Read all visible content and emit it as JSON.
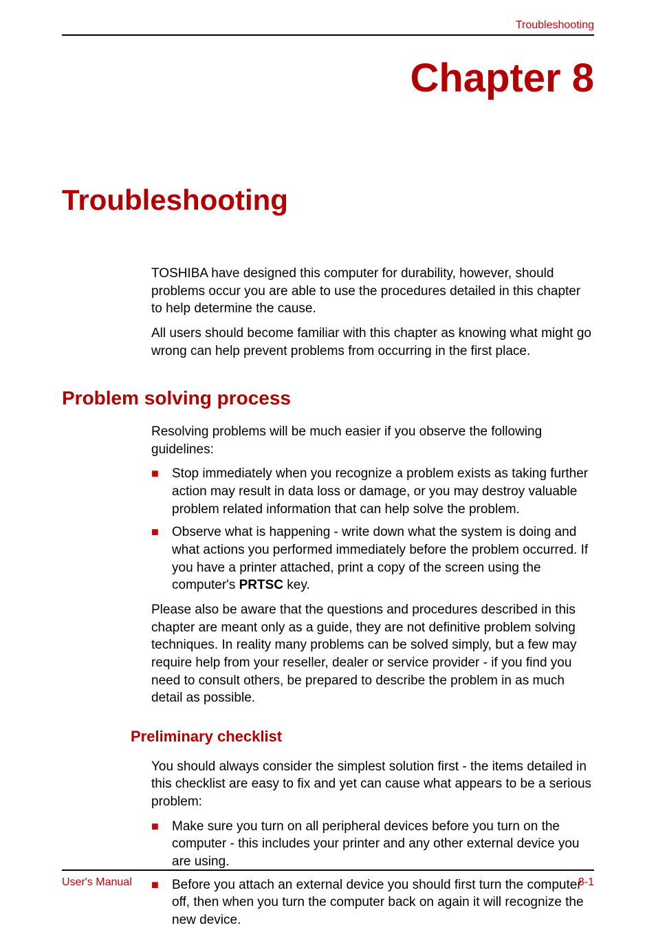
{
  "colors": {
    "accent": "#b30000",
    "accent_light": "#cc0000",
    "text": "#000000",
    "rule": "#000000",
    "background": "#ffffff",
    "bullet": "#cc0000"
  },
  "typography": {
    "body_font": "Arial",
    "body_size_pt": 14,
    "chapter_title_size_pt": 44,
    "page_title_size_pt": 32,
    "section_heading_size_pt": 21,
    "subsection_heading_size_pt": 17
  },
  "header": {
    "label": "Troubleshooting"
  },
  "chapter": {
    "title": "Chapter 8"
  },
  "page_title": "Troubleshooting",
  "intro": {
    "p1": "TOSHIBA have designed this computer for durability, however, should problems occur you are able to use the procedures detailed in this chapter to help determine the cause.",
    "p2": "All users should become familiar with this chapter as knowing what might go wrong can help prevent problems from occurring in the first place."
  },
  "section1": {
    "heading": "Problem solving process",
    "p1": "Resolving problems will be much easier if you observe the following guidelines:",
    "bullets": [
      "Stop immediately when you recognize a problem exists as taking further action may result in data loss or damage, or you may destroy valuable problem related information that can help solve the problem.",
      "Observe what is happening - write down what the system is doing and what actions you performed immediately before the problem occurred. If you have a printer attached, print a copy of the screen using the computer's "
    ],
    "bullet2_bold": "PRTSC",
    "bullet2_tail": " key.",
    "p2": "Please also be aware that the questions and procedures described in this chapter are meant only as a guide, they are not definitive problem solving techniques. In reality many problems can be solved simply, but a few may require help from your reseller, dealer or service provider - if you find you need to consult others, be prepared to describe the problem in as much detail as possible."
  },
  "subsection1": {
    "heading": "Preliminary checklist",
    "p1": "You should always consider the simplest solution first - the items detailed in this checklist are easy to fix and yet can cause what appears to be a serious problem:",
    "bullets": [
      "Make sure you turn on all peripheral devices before you turn on the computer - this includes your printer and any other external device you are using.",
      "Before you attach an external device you should first turn the computer off, then when you turn the computer back on again it will recognize the new device."
    ]
  },
  "footer": {
    "left": "User's Manual",
    "right": "8-1"
  }
}
